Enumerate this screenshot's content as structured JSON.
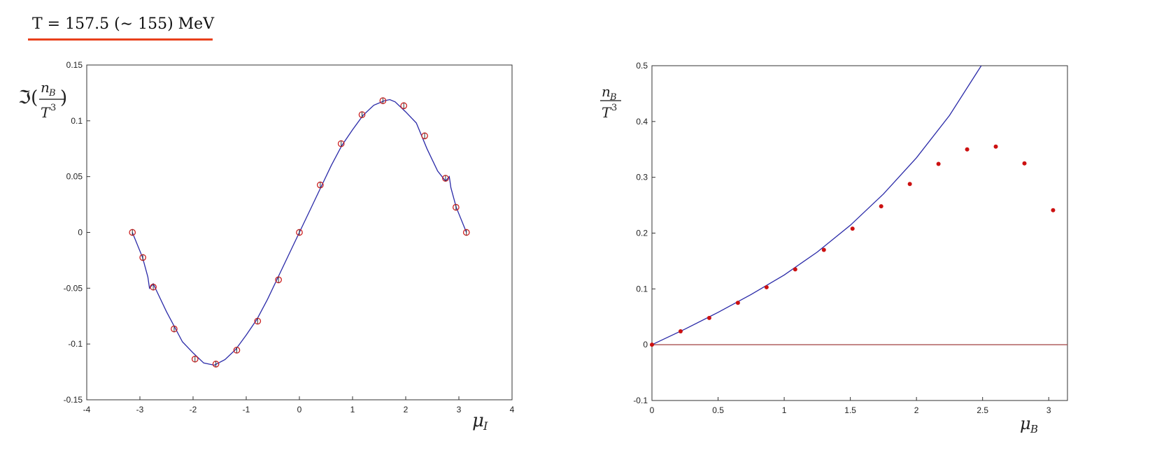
{
  "header": {
    "text": "T = 157.5 (∼ 155) MeV"
  },
  "chart_data": [
    {
      "type": "scatter",
      "xlabel": "μI",
      "ylabel": "ℑ(nB/T³)",
      "xlim": [
        -4,
        4
      ],
      "ylim": [
        -0.15,
        0.15
      ],
      "xticks": [
        "-4",
        "-3",
        "-2",
        "-1",
        "0",
        "1",
        "2",
        "3",
        "4"
      ],
      "yticks": [
        "-0.15",
        "-0.1",
        "-0.05",
        "0",
        "0.05",
        "0.1",
        "0.15"
      ],
      "grid": false,
      "colors": {
        "points": "#cc2222",
        "line": "#2a2aa8"
      },
      "series": [
        {
          "kind": "points",
          "x": [
            -3.1416,
            -2.9452,
            -2.7489,
            -2.3562,
            -1.9635,
            -1.5708,
            -1.1781,
            -0.7854,
            -0.3927,
            0,
            0.3927,
            0.7854,
            1.1781,
            1.5708,
            1.9635,
            2.3562,
            2.7489,
            2.9452,
            3.1416
          ],
          "y": [
            0,
            -0.0225,
            -0.049,
            -0.0865,
            -0.1135,
            -0.118,
            -0.1055,
            -0.0795,
            -0.0425,
            0,
            0.0425,
            0.0795,
            0.1055,
            0.118,
            0.1135,
            0.0865,
            0.0485,
            0.0225,
            0
          ]
        },
        {
          "kind": "line",
          "x": [
            -3.1416,
            -2.95,
            -2.85,
            -2.82,
            -2.75,
            -2.5,
            -2.2,
            -2.0,
            -1.8,
            -1.6,
            -1.4,
            -1.2,
            -1.0,
            -0.8,
            -0.6,
            -0.4,
            -0.2,
            0,
            0.2,
            0.4,
            0.6,
            0.8,
            1.0,
            1.2,
            1.4,
            1.6,
            1.7,
            1.8,
            2.0,
            2.2,
            2.4,
            2.6,
            2.75,
            2.82,
            2.85,
            2.95,
            3.1416
          ],
          "y": [
            0,
            -0.0225,
            -0.04,
            -0.05,
            -0.046,
            -0.071,
            -0.098,
            -0.108,
            -0.117,
            -0.119,
            -0.114,
            -0.105,
            -0.092,
            -0.078,
            -0.06,
            -0.04,
            -0.02,
            0,
            0.02,
            0.04,
            0.06,
            0.078,
            0.092,
            0.105,
            0.114,
            0.118,
            0.119,
            0.117,
            0.108,
            0.098,
            0.075,
            0.055,
            0.046,
            0.05,
            0.04,
            0.0225,
            0
          ]
        }
      ]
    },
    {
      "type": "scatter",
      "xlabel": "μB",
      "ylabel": "nB/T³",
      "xlim": [
        0,
        3.1416
      ],
      "ylim": [
        -0.1,
        0.5
      ],
      "xticks": [
        "0",
        "0.5",
        "1",
        "1.5",
        "2",
        "2.5",
        "3"
      ],
      "yticks": [
        "-0.1",
        "0",
        "0.1",
        "0.2",
        "0.3",
        "0.4",
        "0.5"
      ],
      "grid": false,
      "colors": {
        "points": "#cc1111",
        "line": "#2a2aa8",
        "zero_line": "#a85050"
      },
      "series": [
        {
          "kind": "points",
          "x": [
            0,
            0.2166,
            0.4333,
            0.6499,
            0.8666,
            1.0832,
            1.2999,
            1.5165,
            1.7332,
            1.9498,
            2.1665,
            2.3831,
            2.5997,
            2.8164,
            3.033
          ],
          "y": [
            0,
            0.024,
            0.048,
            0.075,
            0.103,
            0.135,
            0.17,
            0.208,
            0.248,
            0.288,
            0.324,
            0.35,
            0.355,
            0.325,
            0.241
          ]
        },
        {
          "kind": "line",
          "x": [
            0,
            0.25,
            0.5,
            0.75,
            1.0,
            1.25,
            1.5,
            1.75,
            2.0,
            2.25,
            2.49
          ],
          "y": [
            0,
            0.028,
            0.058,
            0.09,
            0.125,
            0.166,
            0.214,
            0.27,
            0.335,
            0.411,
            0.5
          ]
        },
        {
          "kind": "zero-line",
          "x": [
            0,
            3.1416
          ],
          "y": [
            0,
            0
          ]
        }
      ]
    }
  ]
}
